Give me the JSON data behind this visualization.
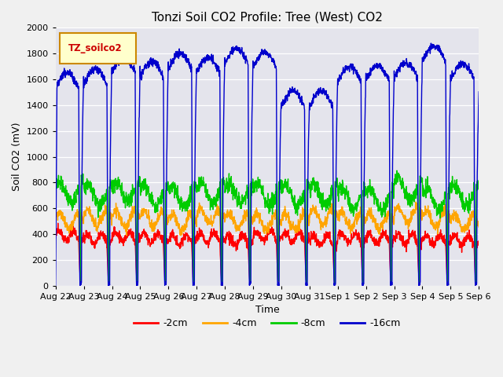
{
  "title": "Tonzi Soil CO2 Profile: Tree (West) CO2",
  "ylabel": "Soil CO2 (mV)",
  "xlabel": "Time",
  "legend_label": "TZ_soilco2",
  "series_labels": [
    "-2cm",
    "-4cm",
    "-8cm",
    "-16cm"
  ],
  "series_colors": [
    "#ff0000",
    "#ffa500",
    "#00cc00",
    "#0000cc"
  ],
  "ylim": [
    0,
    2000
  ],
  "n_days": 15,
  "n_points_per_day": 144,
  "tick_labels": [
    "Aug 22",
    "Aug 23",
    "Aug 24",
    "Aug 25",
    "Aug 26",
    "Aug 27",
    "Aug 28",
    "Aug 29",
    "Aug 30",
    "Aug 31",
    "Sep 1",
    "Sep 2",
    "Sep 3",
    "Sep 4",
    "Sep 5",
    "Sep 6"
  ],
  "title_fontsize": 11,
  "label_fontsize": 9,
  "tick_fontsize": 8,
  "line_width": 1.0,
  "fig_bg": "#e8e8e8",
  "plot_bg": "#e0e0e8"
}
